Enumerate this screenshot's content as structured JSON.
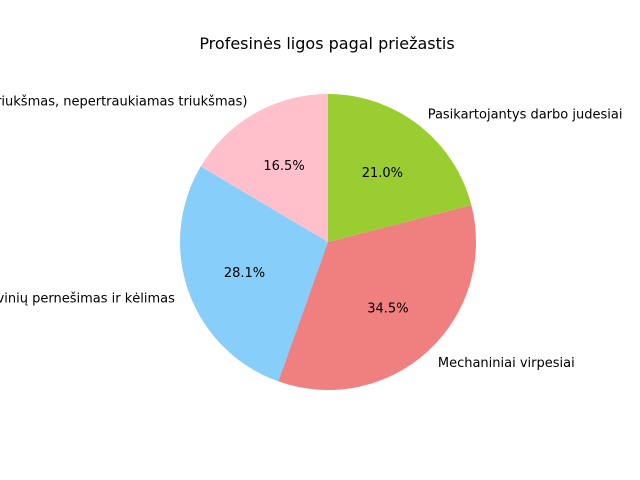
{
  "chart_data": {
    "type": "pie",
    "title": "Profesinės ligos pagal priežastis",
    "slices": [
      {
        "label": "Triukšmas (nuolatinis triukšmas, nepertraukiamas triukšmas)",
        "value": 16.5,
        "display": "16.5%",
        "color": "#ffc0cb"
      },
      {
        "label": "Krovinių pernešimas ir kėlimas",
        "value": 28.1,
        "display": "28.1%",
        "color": "#87cefa"
      },
      {
        "label": "Mechaniniai virpesiai",
        "value": 34.5,
        "display": "34.5%",
        "color": "#f08080"
      },
      {
        "label": "Pasikartojantys darbo judesiai",
        "value": 21.0,
        "display": "21.0%",
        "color": "#9acd32"
      }
    ],
    "start_angle_deg": 90,
    "direction": "counterclockwise",
    "legend": "none"
  }
}
